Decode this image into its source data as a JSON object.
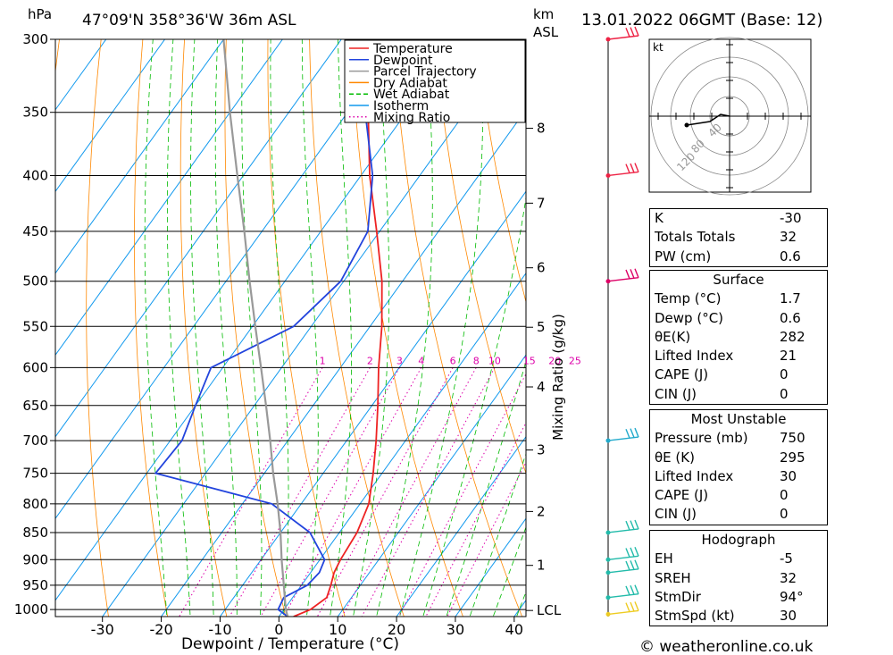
{
  "header": {
    "left_unit": "hPa",
    "location": "47°09'N 358°36'W 36m ASL",
    "km_label": "km",
    "asl_label": "ASL",
    "datetime": "13.01.2022 06GMT (Base: 12)"
  },
  "footer": {
    "credit": "© weatheronline.co.uk"
  },
  "chart_data": {
    "type": "line",
    "title": "",
    "xlabel": "Dewpoint / Temperature (°C)",
    "ylabel": "hPa",
    "right_label": "Mixing Ratio (g/kg)",
    "pressure_levels": [
      300,
      350,
      400,
      450,
      500,
      550,
      600,
      650,
      700,
      750,
      800,
      850,
      900,
      950,
      1000
    ],
    "x_ticks": [
      -30,
      -20,
      -10,
      0,
      10,
      20,
      30,
      40
    ],
    "xlim": [
      -38,
      42
    ],
    "ylim_hpa": [
      1015,
      300
    ],
    "km_ticks": [
      {
        "label": "8",
        "p": 362
      },
      {
        "label": "7",
        "p": 424
      },
      {
        "label": "6",
        "p": 486
      },
      {
        "label": "5",
        "p": 551
      },
      {
        "label": "4",
        "p": 625
      },
      {
        "label": "3",
        "p": 714
      },
      {
        "label": "2",
        "p": 813
      },
      {
        "label": "1",
        "p": 911
      },
      {
        "label": "LCL",
        "p": 1002
      }
    ],
    "mixing_ratio_labels": [
      "1",
      "2",
      "3",
      "4",
      "6",
      "8",
      "10",
      "15",
      "20",
      "25"
    ],
    "mixing_ratio_values": [
      1,
      2,
      3,
      4,
      6,
      8,
      10,
      15,
      20,
      25
    ],
    "legend": {
      "position": "top-right",
      "entries": [
        {
          "name": "Temperature",
          "color": "#ee2222",
          "style": "solid"
        },
        {
          "name": "Dewpoint",
          "color": "#2244dd",
          "style": "solid"
        },
        {
          "name": "Parcel Trajectory",
          "color": "#999999",
          "style": "solid"
        },
        {
          "name": "Dry Adiabat",
          "color": "#ff8800",
          "style": "solid"
        },
        {
          "name": "Wet Adiabat",
          "color": "#00bb00",
          "style": "dashed"
        },
        {
          "name": "Isotherm",
          "color": "#1199ee",
          "style": "solid"
        },
        {
          "name": "Mixing Ratio",
          "color": "#dd00aa",
          "style": "dotted"
        }
      ]
    },
    "series": [
      {
        "name": "Temperature",
        "color": "#ee2222",
        "p": [
          1015,
          1000,
          975,
          950,
          925,
          900,
          850,
          800,
          750,
          700,
          650,
          600,
          550,
          500,
          450,
          400,
          350,
          300
        ],
        "t": [
          2.5,
          4.5,
          5.8,
          5.0,
          4.0,
          3.5,
          3.0,
          1.5,
          -1.5,
          -5.0,
          -9.0,
          -13.5,
          -18.0,
          -23.5,
          -30.5,
          -38.5,
          -46.5,
          -55.0
        ]
      },
      {
        "name": "Dewpoint",
        "color": "#2244dd",
        "p": [
          1015,
          1000,
          975,
          950,
          925,
          900,
          850,
          800,
          750,
          700,
          650,
          600,
          550,
          500,
          450,
          400,
          350,
          300
        ],
        "t": [
          1.5,
          -1.0,
          -1.5,
          1.0,
          1.5,
          0.8,
          -5.0,
          -15.0,
          -38.5,
          -38.0,
          -40.0,
          -42.0,
          -33.0,
          -30.5,
          -32.0,
          -38.0,
          -47.0,
          -55.0
        ]
      },
      {
        "name": "Parcel Trajectory",
        "color": "#999999",
        "p": [
          1015,
          1000,
          950,
          900,
          850,
          800,
          750,
          700,
          650,
          600,
          550,
          500,
          450,
          400,
          350,
          300
        ],
        "t": [
          1.5,
          0.3,
          -3.0,
          -6.5,
          -10.0,
          -14.0,
          -18.5,
          -23.0,
          -28.0,
          -33.5,
          -39.5,
          -46.0,
          -53.0,
          -61.0,
          -70.0,
          -80.0
        ]
      }
    ],
    "wind_barbs": [
      {
        "p": 300,
        "color": "#ee2244"
      },
      {
        "p": 400,
        "color": "#ee2244"
      },
      {
        "p": 500,
        "color": "#dd0066"
      },
      {
        "p": 700,
        "color": "#22aacc"
      },
      {
        "p": 850,
        "color": "#22bbaa"
      },
      {
        "p": 900,
        "color": "#22bbaa"
      },
      {
        "p": 925,
        "color": "#22bbaa"
      },
      {
        "p": 975,
        "color": "#22bbaa"
      },
      {
        "p": 1010,
        "color": "#eecc22"
      }
    ],
    "hodograph": {
      "unit": "kt",
      "rings": [
        "40",
        "80",
        "120"
      ],
      "trace": [
        [
          0,
          0
        ],
        [
          -10,
          2
        ],
        [
          -22,
          -6
        ],
        [
          -48,
          -10
        ]
      ]
    }
  },
  "indices": {
    "basic": [
      {
        "k": "K",
        "v": "-30"
      },
      {
        "k": "Totals Totals",
        "v": "32"
      },
      {
        "k": "PW (cm)",
        "v": "0.6"
      }
    ],
    "surface": {
      "title": "Surface",
      "rows": [
        {
          "k": "Temp (°C)",
          "v": "1.7"
        },
        {
          "k": "Dewp (°C)",
          "v": "0.6"
        },
        {
          "k": "θE(K)",
          "v": "282"
        },
        {
          "k": "Lifted Index",
          "v": "21"
        },
        {
          "k": "CAPE (J)",
          "v": "0"
        },
        {
          "k": "CIN (J)",
          "v": "0"
        }
      ]
    },
    "most_unstable": {
      "title": "Most Unstable",
      "rows": [
        {
          "k": "Pressure (mb)",
          "v": "750"
        },
        {
          "k": "θE (K)",
          "v": "295"
        },
        {
          "k": "Lifted Index",
          "v": "30"
        },
        {
          "k": "CAPE (J)",
          "v": "0"
        },
        {
          "k": "CIN (J)",
          "v": "0"
        }
      ]
    },
    "hodograph": {
      "title": "Hodograph",
      "rows": [
        {
          "k": "EH",
          "v": "-5"
        },
        {
          "k": "SREH",
          "v": "32"
        },
        {
          "k": "StmDir",
          "v": "94°"
        },
        {
          "k": "StmSpd (kt)",
          "v": "30"
        }
      ]
    }
  }
}
